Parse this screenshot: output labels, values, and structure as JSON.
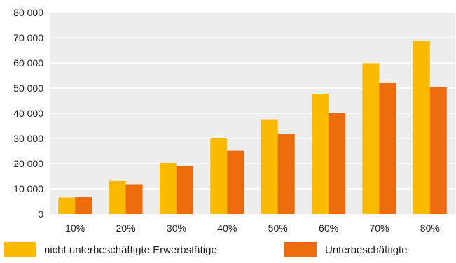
{
  "chart_data": {
    "type": "bar",
    "categories": [
      "10%",
      "20%",
      "30%",
      "40%",
      "50%",
      "60%",
      "70%",
      "80%"
    ],
    "series": [
      {
        "name": "nicht unterbeschäftigte Erwerbstätige",
        "color": "#FBBA00",
        "values": [
          6500,
          13100,
          20300,
          30000,
          37600,
          47800,
          59900,
          68700
        ]
      },
      {
        "name": "Unterbeschäftigte",
        "color": "#EC6B0C",
        "values": [
          6800,
          11800,
          19000,
          25100,
          31800,
          40100,
          52000,
          50300
        ]
      }
    ],
    "yticks": [
      "0",
      "10 000",
      "20 000",
      "30 000",
      "40 000",
      "50 000",
      "60 000",
      "70 000",
      "80 000"
    ],
    "ylim": [
      0,
      80000
    ],
    "grid": true,
    "legend_position": "bottom",
    "plot_background": "#EDEDED",
    "grid_color": "#FFFFFF"
  }
}
